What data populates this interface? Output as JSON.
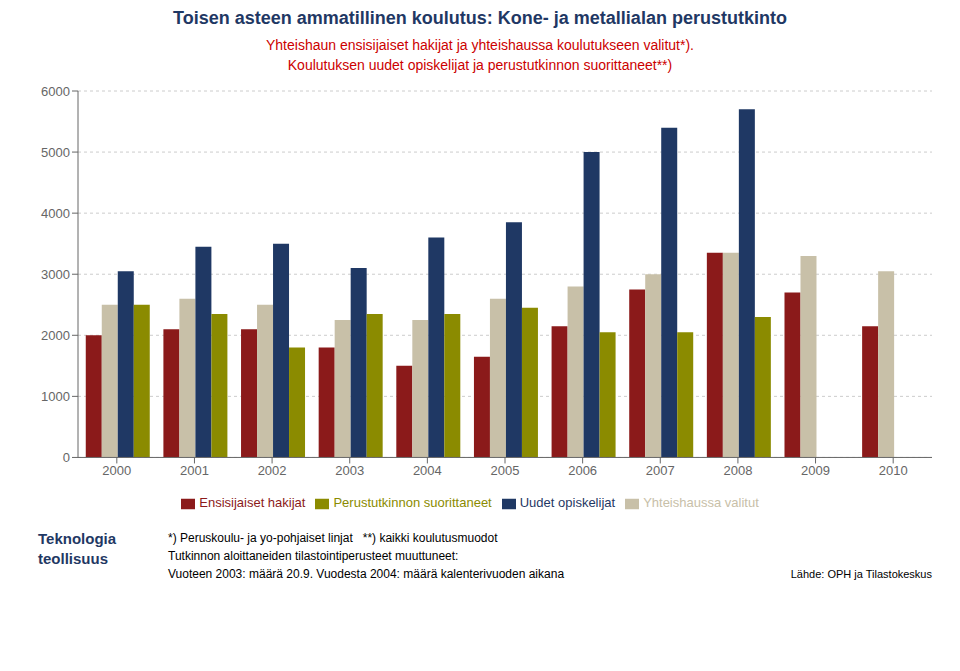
{
  "chart_data": {
    "type": "bar",
    "title": "Toisen asteen ammatillinen koulutus: Kone- ja metallialan perustutkinto",
    "subtitle": [
      "Yhteishaun ensisijaiset hakijat ja yhteishaussa koulutukseen valitut*).",
      "Koulutuksen uudet opiskelijat ja perustutkinnon suorittaneet**)"
    ],
    "title_color": "#1F3864",
    "subtitle_color": "#CC0000",
    "categories": [
      "2000",
      "2001",
      "2002",
      "2003",
      "2004",
      "2005",
      "2006",
      "2007",
      "2008",
      "2009",
      "2010"
    ],
    "series": [
      {
        "name": "Ensisijaiset hakijat",
        "color": "#8B1A1A",
        "values": [
          2000,
          2100,
          2100,
          1800,
          1500,
          1650,
          2150,
          2750,
          3350,
          2700,
          2150
        ]
      },
      {
        "name": "Yhteishaussa valitut",
        "color": "#C8C0A8",
        "values": [
          2500,
          2600,
          2500,
          2250,
          2250,
          2600,
          2800,
          3000,
          3350,
          3300,
          3050
        ]
      },
      {
        "name": "Uudet opiskelijat",
        "color": "#1F3864",
        "values": [
          3050,
          3450,
          3500,
          3100,
          3600,
          3850,
          5000,
          5400,
          5700,
          null,
          null
        ]
      },
      {
        "name": "Perustutkinnon suorittaneet",
        "color": "#8B8B00",
        "values": [
          2500,
          2350,
          1800,
          2350,
          2350,
          2450,
          2050,
          2050,
          2300,
          null,
          null
        ]
      }
    ],
    "ylim": [
      0,
      6000
    ],
    "yticks": [
      0,
      1000,
      2000,
      3000,
      4000,
      5000,
      6000
    ],
    "grid": true,
    "legend": "bottom",
    "logo": [
      "Teknologia",
      "teollisuus"
    ],
    "footnotes": [
      "*) Peruskoulu- ja yo-pohjaiset linjat   **) kaikki koulutusmuodot",
      "Tutkinnon aloittaneiden tilastointiperusteet muuttuneet:",
      "Vuoteen 2003: määrä 20.9. Vuodesta 2004: määrä kalenterivuoden aikana"
    ],
    "source": "Lähde: OPH ja Tilastokeskus"
  }
}
